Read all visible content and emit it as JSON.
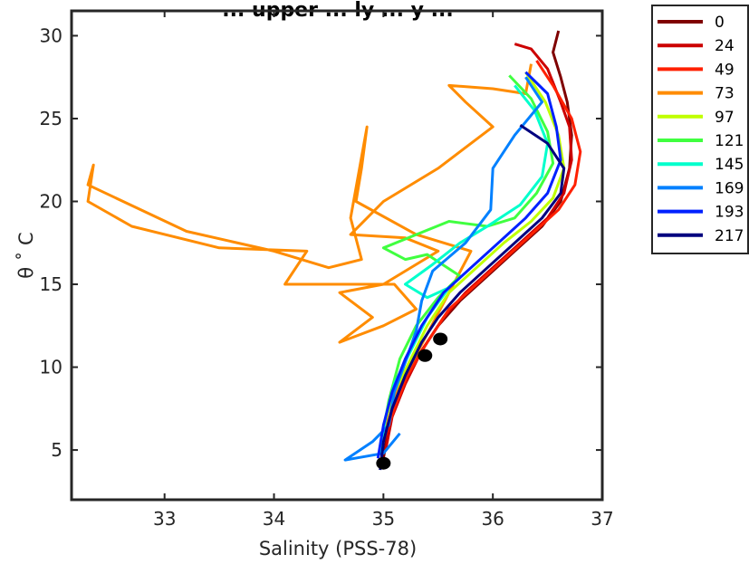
{
  "chart_data": {
    "type": "line",
    "title": "... upper ... ly ... y ...",
    "xlabel": "Salinity (PSS-78)",
    "ylabel": "θ ˚ C",
    "xlim": [
      32.15,
      37.0
    ],
    "ylim": [
      2.0,
      31.5
    ],
    "xticks": [
      "33",
      "34",
      "35",
      "36",
      "37"
    ],
    "yticks": [
      "5",
      "10",
      "15",
      "20",
      "25",
      "30"
    ],
    "legend_position": "outside-right",
    "series": [
      {
        "name": "0",
        "color": "#7f0000",
        "points": [
          [
            36.6,
            30.3
          ],
          [
            36.55,
            29.0
          ],
          [
            36.62,
            27.5
          ],
          [
            36.68,
            26.0
          ],
          [
            36.72,
            24.0
          ],
          [
            36.7,
            22.0
          ],
          [
            36.62,
            20.0
          ],
          [
            36.45,
            18.5
          ],
          [
            36.2,
            17.0
          ],
          [
            35.95,
            15.5
          ],
          [
            35.7,
            14.0
          ],
          [
            35.5,
            12.5
          ],
          [
            35.3,
            10.5
          ],
          [
            35.15,
            8.5
          ],
          [
            35.05,
            6.5
          ],
          [
            35.0,
            4.5
          ]
        ]
      },
      {
        "name": "24",
        "color": "#cc0000",
        "points": [
          [
            36.2,
            29.5
          ],
          [
            36.35,
            29.2
          ],
          [
            36.5,
            28.0
          ],
          [
            36.62,
            26.0
          ],
          [
            36.7,
            24.5
          ],
          [
            36.72,
            22.5
          ],
          [
            36.65,
            20.5
          ],
          [
            36.5,
            19.0
          ],
          [
            36.25,
            17.5
          ],
          [
            36.0,
            16.0
          ],
          [
            35.75,
            14.5
          ],
          [
            35.55,
            13.0
          ],
          [
            35.35,
            11.0
          ],
          [
            35.2,
            9.0
          ],
          [
            35.08,
            7.0
          ],
          [
            35.02,
            5.0
          ]
        ]
      },
      {
        "name": "49",
        "color": "#ff2000",
        "points": [
          [
            36.4,
            28.5
          ],
          [
            36.55,
            27.0
          ],
          [
            36.72,
            25.0
          ],
          [
            36.8,
            23.0
          ],
          [
            36.75,
            21.0
          ],
          [
            36.6,
            19.5
          ],
          [
            36.35,
            18.0
          ],
          [
            36.1,
            16.5
          ],
          [
            35.85,
            15.0
          ],
          [
            35.6,
            13.5
          ],
          [
            35.4,
            11.5
          ],
          [
            35.22,
            9.5
          ],
          [
            35.1,
            7.5
          ],
          [
            35.0,
            5.5
          ]
        ]
      },
      {
        "name": "73",
        "color": "#ff8c00",
        "points": [
          [
            36.35,
            28.3
          ],
          [
            36.3,
            26.5
          ],
          [
            36.0,
            26.8
          ],
          [
            35.6,
            27.0
          ],
          [
            35.75,
            26.0
          ],
          [
            36.0,
            24.5
          ],
          [
            35.5,
            22.0
          ],
          [
            35.0,
            20.0
          ],
          [
            34.7,
            18.0
          ],
          [
            35.2,
            17.8
          ],
          [
            35.5,
            17.0
          ],
          [
            35.0,
            15.0
          ],
          [
            34.6,
            14.5
          ],
          [
            34.9,
            13.0
          ],
          [
            34.6,
            11.5
          ],
          [
            35.0,
            12.5
          ],
          [
            35.3,
            13.5
          ],
          [
            35.1,
            15.0
          ],
          [
            34.1,
            15.0
          ],
          [
            34.3,
            17.0
          ],
          [
            33.5,
            17.2
          ],
          [
            32.7,
            18.5
          ],
          [
            32.3,
            20.0
          ],
          [
            32.35,
            22.2
          ],
          [
            32.3,
            21.0
          ],
          [
            33.2,
            18.2
          ],
          [
            34.0,
            17.0
          ],
          [
            34.5,
            16.0
          ],
          [
            34.8,
            16.5
          ],
          [
            34.7,
            19.0
          ],
          [
            34.85,
            24.5
          ],
          [
            34.8,
            22.0
          ],
          [
            34.75,
            20.0
          ],
          [
            35.3,
            18.0
          ],
          [
            35.8,
            17.0
          ],
          [
            35.4,
            12.0
          ],
          [
            35.2,
            9.5
          ],
          [
            35.05,
            7.5
          ],
          [
            34.95,
            4.5
          ]
        ]
      },
      {
        "name": "97",
        "color": "#c0ff00",
        "points": [
          [
            36.3,
            27.8
          ],
          [
            36.48,
            26.0
          ],
          [
            36.6,
            24.0
          ],
          [
            36.65,
            22.0
          ],
          [
            36.55,
            20.2
          ],
          [
            36.35,
            18.8
          ],
          [
            36.1,
            17.5
          ],
          [
            35.85,
            16.0
          ],
          [
            35.6,
            14.5
          ],
          [
            35.4,
            12.5
          ],
          [
            35.25,
            10.5
          ],
          [
            35.1,
            8.5
          ],
          [
            35.0,
            6.5
          ]
        ]
      },
      {
        "name": "121",
        "color": "#40ff40",
        "points": [
          [
            36.15,
            27.6
          ],
          [
            36.35,
            26.2
          ],
          [
            36.5,
            24.2
          ],
          [
            36.55,
            22.3
          ],
          [
            36.4,
            20.5
          ],
          [
            36.2,
            19.0
          ],
          [
            35.95,
            18.5
          ],
          [
            35.6,
            18.8
          ],
          [
            35.3,
            18.0
          ],
          [
            35.0,
            17.2
          ],
          [
            35.2,
            16.5
          ],
          [
            35.4,
            16.8
          ],
          [
            35.7,
            15.5
          ],
          [
            35.5,
            14.2
          ],
          [
            35.3,
            12.5
          ],
          [
            35.15,
            10.5
          ],
          [
            35.05,
            8.0
          ],
          [
            34.98,
            5.5
          ]
        ]
      },
      {
        "name": "145",
        "color": "#00ffcc",
        "points": [
          [
            36.2,
            27.0
          ],
          [
            36.38,
            25.5
          ],
          [
            36.5,
            23.5
          ],
          [
            36.45,
            21.5
          ],
          [
            36.25,
            19.8
          ],
          [
            35.95,
            18.5
          ],
          [
            35.7,
            17.5
          ],
          [
            35.45,
            16.2
          ],
          [
            35.2,
            15.0
          ],
          [
            35.4,
            14.2
          ],
          [
            35.6,
            14.8
          ],
          [
            35.4,
            13.0
          ],
          [
            35.25,
            11.0
          ],
          [
            35.1,
            9.0
          ],
          [
            35.02,
            7.0
          ],
          [
            34.97,
            4.8
          ]
        ]
      },
      {
        "name": "169",
        "color": "#0080ff",
        "points": [
          [
            36.3,
            27.5
          ],
          [
            36.45,
            26.0
          ],
          [
            36.2,
            24.0
          ],
          [
            36.0,
            22.0
          ],
          [
            35.98,
            19.5
          ],
          [
            35.75,
            17.5
          ],
          [
            35.45,
            15.8
          ],
          [
            35.35,
            14.0
          ],
          [
            35.3,
            12.2
          ],
          [
            35.2,
            10.3
          ],
          [
            35.1,
            8.5
          ],
          [
            35.05,
            6.5
          ],
          [
            34.9,
            5.5
          ],
          [
            34.65,
            4.4
          ],
          [
            35.0,
            4.8
          ],
          [
            35.15,
            6.0
          ]
        ]
      },
      {
        "name": "193",
        "color": "#0020ff",
        "points": [
          [
            36.3,
            27.8
          ],
          [
            36.5,
            26.5
          ],
          [
            36.58,
            24.5
          ],
          [
            36.62,
            22.5
          ],
          [
            36.5,
            20.5
          ],
          [
            36.3,
            19.0
          ],
          [
            36.05,
            17.5
          ],
          [
            35.8,
            16.0
          ],
          [
            35.55,
            14.5
          ],
          [
            35.35,
            12.5
          ],
          [
            35.2,
            10.5
          ],
          [
            35.08,
            8.5
          ],
          [
            35.0,
            6.5
          ],
          [
            34.95,
            4.5
          ]
        ]
      },
      {
        "name": "217",
        "color": "#00007f",
        "points": [
          [
            36.25,
            24.6
          ],
          [
            36.5,
            23.5
          ],
          [
            36.65,
            22.0
          ],
          [
            36.62,
            20.5
          ],
          [
            36.45,
            19.0
          ],
          [
            36.2,
            17.5
          ],
          [
            35.95,
            16.0
          ],
          [
            35.7,
            14.5
          ],
          [
            35.5,
            13.0
          ],
          [
            35.35,
            11.5
          ],
          [
            35.2,
            9.5
          ],
          [
            35.08,
            7.5
          ],
          [
            35.0,
            5.5
          ],
          [
            34.97,
            3.8
          ]
        ]
      }
    ],
    "markers": [
      {
        "x": 35.52,
        "y": 11.7
      },
      {
        "x": 35.38,
        "y": 10.7
      },
      {
        "x": 35.0,
        "y": 4.2
      }
    ]
  }
}
